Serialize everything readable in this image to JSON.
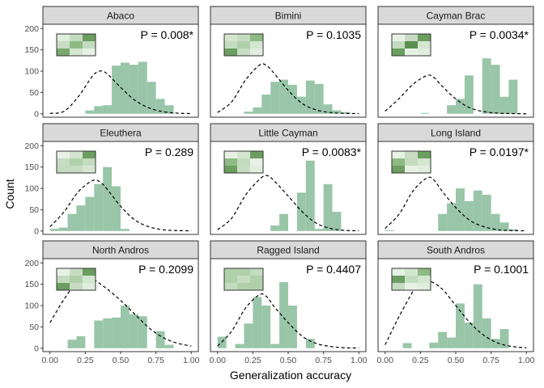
{
  "chart_data": {
    "type": "bar",
    "subtype": "faceted histogram with density curve",
    "xlabel": "Generalization accuracy",
    "ylabel": "Count",
    "xlim": [
      -0.05,
      1.05
    ],
    "ylim": [
      -8,
      210
    ],
    "x_ticks": [
      "0.00",
      "0.25",
      "0.50",
      "0.75",
      "1.00"
    ],
    "y_ticks": [
      "0",
      "50",
      "100",
      "150",
      "200"
    ],
    "bin_width": 0.0625,
    "bar_color": "#99c5a8",
    "curve_style": "dashed black",
    "facets": [
      {
        "name": "Abaco",
        "p_label": "P = 0.008*",
        "bins": [
          [
            0.25,
            0.3125,
            8
          ],
          [
            0.3125,
            0.375,
            18
          ],
          [
            0.375,
            0.4375,
            20
          ],
          [
            0.4375,
            0.5,
            113
          ],
          [
            0.5,
            0.5625,
            120
          ],
          [
            0.5625,
            0.625,
            115
          ],
          [
            0.625,
            0.6875,
            122
          ],
          [
            0.6875,
            0.75,
            75
          ],
          [
            0.75,
            0.8125,
            35
          ],
          [
            0.8125,
            0.875,
            20
          ]
        ],
        "curve": [
          [
            0.0,
            1
          ],
          [
            0.1,
            6
          ],
          [
            0.2,
            40
          ],
          [
            0.3,
            88
          ],
          [
            0.35,
            100
          ],
          [
            0.4,
            95
          ],
          [
            0.5,
            62
          ],
          [
            0.6,
            32
          ],
          [
            0.7,
            14
          ],
          [
            0.8,
            5
          ],
          [
            0.9,
            1.5
          ],
          [
            1.0,
            0.5
          ]
        ],
        "thumb": [
          [
            "#dfeedd",
            "#c3dcbf",
            "#6b9e60"
          ],
          [
            "#c7dcc3",
            "#8dbb83",
            "#c3dcbf"
          ],
          [
            "#79a86e",
            "#d4e6d0",
            "#e7f2e5"
          ]
        ]
      },
      {
        "name": "Bimini",
        "p_label": "P = 0.1035",
        "bins": [
          [
            0.1875,
            0.25,
            5
          ],
          [
            0.25,
            0.3125,
            15
          ],
          [
            0.3125,
            0.375,
            45
          ],
          [
            0.375,
            0.4375,
            75
          ],
          [
            0.4375,
            0.5,
            80
          ],
          [
            0.5,
            0.5625,
            68
          ],
          [
            0.5625,
            0.625,
            40
          ],
          [
            0.625,
            0.6875,
            78
          ],
          [
            0.6875,
            0.75,
            70
          ],
          [
            0.75,
            0.8125,
            22
          ],
          [
            0.8125,
            0.875,
            8
          ],
          [
            0.875,
            0.9375,
            4
          ]
        ],
        "curve": [
          [
            0.0,
            3
          ],
          [
            0.1,
            28
          ],
          [
            0.2,
            80
          ],
          [
            0.3,
            115
          ],
          [
            0.35,
            112
          ],
          [
            0.4,
            95
          ],
          [
            0.5,
            55
          ],
          [
            0.6,
            24
          ],
          [
            0.7,
            9
          ],
          [
            0.8,
            3
          ],
          [
            0.9,
            1
          ],
          [
            1.0,
            0.5
          ]
        ],
        "thumb": [
          [
            "#d4e6d0",
            "#c3dcbf",
            "#8dbb83"
          ],
          [
            "#c3dcbf",
            "#b0d0aa",
            "#d4e6d0"
          ],
          [
            "#6b9e60",
            "#c7dcc3",
            "#dfeedd"
          ]
        ]
      },
      {
        "name": "Cayman Brac",
        "p_label": "P = 0.0034*",
        "bins": [
          [
            0.25,
            0.3125,
            2
          ],
          [
            0.4375,
            0.5,
            20
          ],
          [
            0.5,
            0.5625,
            35
          ],
          [
            0.5625,
            0.625,
            90
          ],
          [
            0.6875,
            0.75,
            130
          ],
          [
            0.75,
            0.8125,
            115
          ],
          [
            0.8125,
            0.875,
            40
          ],
          [
            0.875,
            0.9375,
            80
          ]
        ],
        "curve": [
          [
            0.0,
            6
          ],
          [
            0.1,
            36
          ],
          [
            0.2,
            70
          ],
          [
            0.3,
            90
          ],
          [
            0.35,
            84
          ],
          [
            0.4,
            66
          ],
          [
            0.5,
            35
          ],
          [
            0.6,
            14
          ],
          [
            0.7,
            5
          ],
          [
            0.8,
            1.5
          ],
          [
            0.9,
            0.5
          ],
          [
            1.0,
            0
          ]
        ],
        "thumb": [
          [
            "#e7f2e5",
            "#c7dcc3",
            "#6b9e60"
          ],
          [
            "#c3dcbf",
            "#5b8f50",
            "#d4e6d0"
          ],
          [
            "#6b9e60",
            "#e7f2e5",
            "#dfeedd"
          ]
        ]
      },
      {
        "name": "Eleuthera",
        "p_label": "P = 0.289",
        "bins": [
          [
            0.0,
            0.0625,
            5
          ],
          [
            0.0625,
            0.125,
            8
          ],
          [
            0.125,
            0.1875,
            40
          ],
          [
            0.1875,
            0.25,
            60
          ],
          [
            0.25,
            0.3125,
            80
          ],
          [
            0.3125,
            0.375,
            110
          ],
          [
            0.375,
            0.4375,
            150
          ],
          [
            0.4375,
            0.5,
            105
          ],
          [
            0.5,
            0.5625,
            5
          ]
        ],
        "curve": [
          [
            0.0,
            10
          ],
          [
            0.1,
            45
          ],
          [
            0.2,
            92
          ],
          [
            0.3,
            118
          ],
          [
            0.35,
            116
          ],
          [
            0.4,
            100
          ],
          [
            0.5,
            58
          ],
          [
            0.6,
            26
          ],
          [
            0.7,
            10
          ],
          [
            0.8,
            3
          ],
          [
            0.9,
            1
          ],
          [
            1.0,
            0.5
          ]
        ],
        "thumb": [
          [
            "#e7f2e5",
            "#d4e6d0",
            "#6b9e60"
          ],
          [
            "#c7dcc3",
            "#b0d0aa",
            "#c3dcbf"
          ],
          [
            "#c3dcbf",
            "#c7dcc3",
            "#d4e6d0"
          ]
        ]
      },
      {
        "name": "Little Cayman",
        "p_label": "P = 0.0083*",
        "bins": [
          [
            0.375,
            0.4375,
            13
          ],
          [
            0.4375,
            0.5,
            40
          ],
          [
            0.5625,
            0.625,
            90
          ],
          [
            0.625,
            0.6875,
            165
          ],
          [
            0.6875,
            0.75,
            5
          ],
          [
            0.75,
            0.8125,
            110
          ],
          [
            0.8125,
            0.875,
            45
          ]
        ],
        "curve": [
          [
            0.0,
            3
          ],
          [
            0.1,
            30
          ],
          [
            0.2,
            85
          ],
          [
            0.3,
            122
          ],
          [
            0.35,
            130
          ],
          [
            0.4,
            118
          ],
          [
            0.5,
            82
          ],
          [
            0.6,
            45
          ],
          [
            0.7,
            18
          ],
          [
            0.8,
            6
          ],
          [
            0.9,
            1.5
          ],
          [
            1.0,
            0.5
          ]
        ],
        "thumb": [
          [
            "#e7f2e5",
            "#d4e6d0",
            "#6b9e60"
          ],
          [
            "#8dbb83",
            "#c3dcbf",
            "#e7f2e5"
          ],
          [
            "#6b9e60",
            "#c7dcc3",
            "#dfeedd"
          ]
        ]
      },
      {
        "name": "Long Island",
        "p_label": "P = 0.0197*",
        "bins": [
          [
            0.0,
            0.0625,
            2
          ],
          [
            0.375,
            0.4375,
            40
          ],
          [
            0.4375,
            0.5,
            65
          ],
          [
            0.5,
            0.5625,
            100
          ],
          [
            0.5625,
            0.625,
            70
          ],
          [
            0.625,
            0.6875,
            95
          ],
          [
            0.6875,
            0.75,
            85
          ],
          [
            0.75,
            0.8125,
            40
          ],
          [
            0.8125,
            0.875,
            20
          ],
          [
            0.875,
            0.9375,
            4
          ]
        ],
        "curve": [
          [
            0.0,
            6
          ],
          [
            0.1,
            40
          ],
          [
            0.2,
            95
          ],
          [
            0.3,
            125
          ],
          [
            0.35,
            118
          ],
          [
            0.4,
            95
          ],
          [
            0.5,
            55
          ],
          [
            0.6,
            25
          ],
          [
            0.7,
            10
          ],
          [
            0.8,
            3
          ],
          [
            0.9,
            1
          ],
          [
            1.0,
            0.5
          ]
        ],
        "thumb": [
          [
            "#e7f2e5",
            "#c7dcc3",
            "#6b9e60"
          ],
          [
            "#8dbb83",
            "#c3dcbf",
            "#d4e6d0"
          ],
          [
            "#6b9e60",
            "#e7f2e5",
            "#dfeedd"
          ]
        ]
      },
      {
        "name": "North Andros",
        "p_label": "P = 0.2099",
        "bins": [
          [
            0.125,
            0.1875,
            20
          ],
          [
            0.1875,
            0.25,
            28
          ],
          [
            0.3125,
            0.375,
            65
          ],
          [
            0.375,
            0.4375,
            70
          ],
          [
            0.4375,
            0.5,
            72
          ],
          [
            0.5,
            0.5625,
            100
          ],
          [
            0.5625,
            0.625,
            80
          ],
          [
            0.625,
            0.6875,
            75
          ],
          [
            0.75,
            0.8125,
            40
          ],
          [
            0.8125,
            0.875,
            8
          ]
        ],
        "curve": [
          [
            0.0,
            60
          ],
          [
            0.1,
            115
          ],
          [
            0.2,
            160
          ],
          [
            0.25,
            165
          ],
          [
            0.3,
            163
          ],
          [
            0.4,
            140
          ],
          [
            0.5,
            112
          ],
          [
            0.6,
            80
          ],
          [
            0.7,
            48
          ],
          [
            0.8,
            25
          ],
          [
            0.9,
            12
          ],
          [
            1.0,
            5
          ]
        ],
        "thumb": [
          [
            "#e7f2e5",
            "#c7dcc3",
            "#6b9e60"
          ],
          [
            "#c3dcbf",
            "#b0d0aa",
            "#d4e6d0"
          ],
          [
            "#6b9e60",
            "#c7dcc3",
            "#dfeedd"
          ]
        ]
      },
      {
        "name": "Ragged Island",
        "p_label": "P = 0.4407",
        "bins": [
          [
            0.0,
            0.0625,
            27
          ],
          [
            0.125,
            0.1875,
            10
          ],
          [
            0.1875,
            0.25,
            58
          ],
          [
            0.25,
            0.3125,
            120
          ],
          [
            0.3125,
            0.375,
            100
          ],
          [
            0.375,
            0.4375,
            10
          ],
          [
            0.4375,
            0.5,
            155
          ],
          [
            0.5,
            0.5625,
            100
          ],
          [
            0.625,
            0.6875,
            22
          ]
        ],
        "curve": [
          [
            0.0,
            5
          ],
          [
            0.1,
            40
          ],
          [
            0.2,
            95
          ],
          [
            0.3,
            126
          ],
          [
            0.35,
            120
          ],
          [
            0.4,
            98
          ],
          [
            0.5,
            60
          ],
          [
            0.6,
            28
          ],
          [
            0.7,
            11
          ],
          [
            0.8,
            4
          ],
          [
            0.9,
            1
          ],
          [
            1.0,
            0.5
          ]
        ],
        "thumb": [
          [
            "#b0d0aa",
            "#b0d0aa",
            "#c3dcbf"
          ],
          [
            "#b0d0aa",
            "#c7dcc3",
            "#b0d0aa"
          ],
          [
            "#c3dcbf",
            "#b0d0aa",
            "#b0d0aa"
          ]
        ]
      },
      {
        "name": "South Andros",
        "p_label": "P = 0.1001",
        "bins": [
          [
            0.125,
            0.1875,
            12
          ],
          [
            0.3125,
            0.375,
            13
          ],
          [
            0.375,
            0.4375,
            38
          ],
          [
            0.4375,
            0.5,
            25
          ],
          [
            0.5,
            0.5625,
            105
          ],
          [
            0.5625,
            0.625,
            60
          ],
          [
            0.625,
            0.6875,
            150
          ],
          [
            0.6875,
            0.75,
            70
          ],
          [
            0.75,
            0.8125,
            22
          ],
          [
            0.8125,
            0.875,
            45
          ]
        ],
        "curve": [
          [
            0.0,
            8
          ],
          [
            0.1,
            75
          ],
          [
            0.2,
            135
          ],
          [
            0.25,
            158
          ],
          [
            0.3,
            160
          ],
          [
            0.4,
            140
          ],
          [
            0.5,
            100
          ],
          [
            0.6,
            60
          ],
          [
            0.7,
            30
          ],
          [
            0.8,
            12
          ],
          [
            0.9,
            4
          ],
          [
            1.0,
            1
          ]
        ],
        "thumb": [
          [
            "#e7f2e5",
            "#d4e6d0",
            "#8dbb83"
          ],
          [
            "#6b9e60",
            "#c3dcbf",
            "#d4e6d0"
          ],
          [
            "#c3dcbf",
            "#e7f2e5",
            "#dfeedd"
          ]
        ]
      }
    ]
  }
}
